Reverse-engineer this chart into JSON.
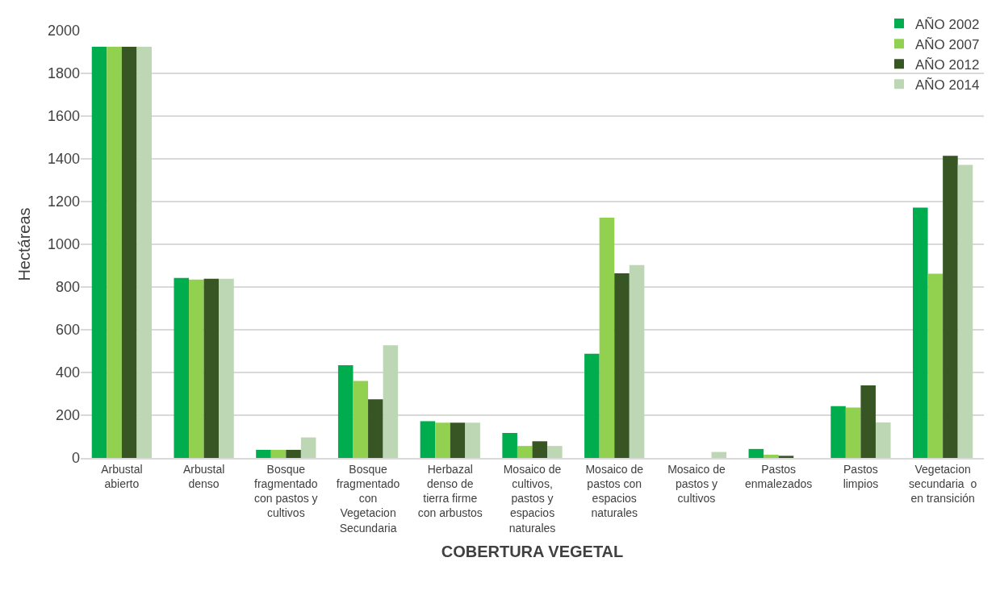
{
  "chart_data": {
    "type": "bar",
    "xlabel": "COBERTURA VEGETAL",
    "ylabel": "Hectáreas",
    "categories": [
      "Arbustal abierto",
      "Arbustal denso",
      "Bosque fragmentado con pastos y cultivos",
      "Bosque fragmentado con Vegetacion Secundaria",
      "Herbazal denso de tierra firme con arbustos",
      "Mosaico de cultivos, pastos y espacios naturales",
      "Mosaico de pastos con espacios naturales",
      "Mosaico de pastos y cultivos",
      "Pastos enmalezados",
      "Pastos limpios",
      "Vegetacion secundaria  o en transición"
    ],
    "series": [
      {
        "name": "AÑO 2002",
        "color": "#00ad4e",
        "values": [
          1925,
          842,
          38,
          434,
          172,
          117,
          488,
          0,
          42,
          242,
          1172
        ]
      },
      {
        "name": "AÑO 2007",
        "color": "#92d050",
        "values": [
          1925,
          835,
          38,
          360,
          165,
          56,
          1125,
          0,
          15,
          236,
          862
        ]
      },
      {
        "name": "AÑO 2012",
        "color": "#375623",
        "values": [
          1925,
          839,
          38,
          275,
          165,
          78,
          864,
          0,
          10,
          340,
          1414
        ]
      },
      {
        "name": "AÑO 2014",
        "color": "#bdd7b4",
        "values": [
          1925,
          839,
          96,
          527,
          165,
          56,
          903,
          28,
          0,
          166,
          1372
        ]
      }
    ],
    "ylim": [
      0,
      2000
    ],
    "yticks": [
      0,
      200,
      400,
      600,
      800,
      1000,
      1200,
      1400,
      1600,
      1800,
      2000
    ],
    "grid": "y",
    "legend": "top right"
  }
}
